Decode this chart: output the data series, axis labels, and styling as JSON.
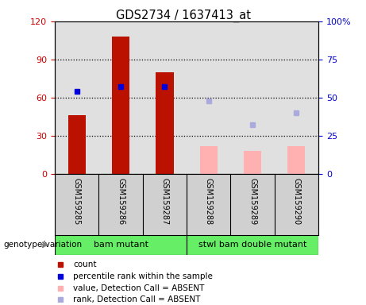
{
  "title": "GDS2734 / 1637413_at",
  "samples": [
    "GSM159285",
    "GSM159286",
    "GSM159287",
    "GSM159288",
    "GSM159289",
    "GSM159290"
  ],
  "count_values": [
    46,
    108,
    80,
    null,
    null,
    null
  ],
  "percentile_rank_values": [
    54,
    57,
    57,
    null,
    null,
    null
  ],
  "absent_value_bars": [
    null,
    null,
    null,
    22,
    18,
    22
  ],
  "absent_rank_dots": [
    null,
    null,
    null,
    48,
    32,
    40
  ],
  "left_ylim": [
    0,
    120
  ],
  "right_ylim": [
    0,
    100
  ],
  "left_yticks": [
    0,
    30,
    60,
    90,
    120
  ],
  "right_yticks": [
    0,
    25,
    50,
    75,
    100
  ],
  "left_ylabel_color": "#cc0000",
  "right_ylabel_color": "#0000cc",
  "count_bar_color": "#bb1100",
  "percentile_dot_color": "#0000dd",
  "absent_bar_color": "#ffb0b0",
  "absent_rank_dot_color": "#aaaadd",
  "grid_color": "black",
  "plot_bg_color": "#e0e0e0",
  "sample_label_bg": "#d0d0d0",
  "group_color": "#66ee66",
  "genotype_label": "genotype/variation",
  "group1_label": "bam mutant",
  "group2_label": "stwl bam double mutant",
  "legend_items": [
    {
      "color": "#bb1100",
      "label": "count"
    },
    {
      "color": "#0000dd",
      "label": "percentile rank within the sample"
    },
    {
      "color": "#ffb0b0",
      "label": "value, Detection Call = ABSENT"
    },
    {
      "color": "#aaaadd",
      "label": "rank, Detection Call = ABSENT"
    }
  ]
}
